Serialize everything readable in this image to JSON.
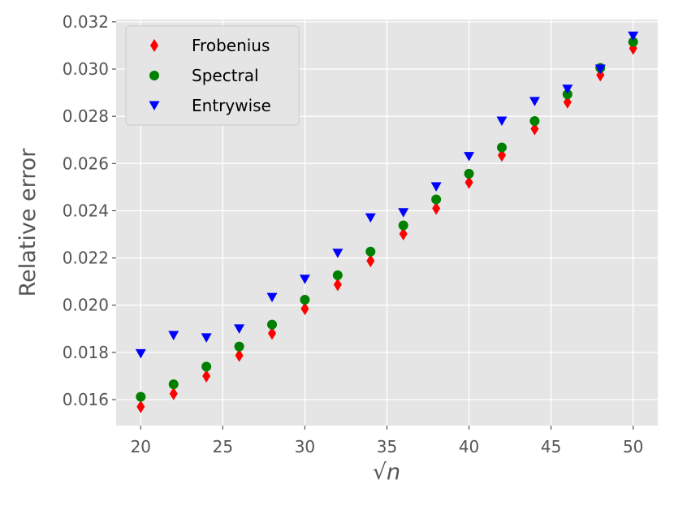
{
  "chart_data": {
    "type": "scatter",
    "title": "",
    "xlabel": "√n",
    "ylabel": "Relative error",
    "xlim": [
      18.5,
      51.5
    ],
    "ylim": [
      0.0149,
      0.0321
    ],
    "grid": true,
    "legend_position": "top-left",
    "x_ticks": [
      20,
      25,
      30,
      35,
      40,
      45,
      50
    ],
    "x_tick_labels": [
      "20",
      "25",
      "30",
      "35",
      "40",
      "45",
      "50"
    ],
    "y_ticks": [
      0.016,
      0.018,
      0.02,
      0.022,
      0.024,
      0.026,
      0.028,
      0.03,
      0.032
    ],
    "y_tick_labels": [
      "0.016",
      "0.018",
      "0.020",
      "0.022",
      "0.024",
      "0.026",
      "0.028",
      "0.030",
      "0.032"
    ],
    "x": [
      20,
      22,
      24,
      26,
      28,
      30,
      32,
      34,
      36,
      38,
      40,
      42,
      44,
      46,
      48,
      50
    ],
    "series": [
      {
        "name": "Frobenius",
        "marker": "diamond",
        "color": "#ff0000",
        "values": [
          0.0157,
          0.01625,
          0.017,
          0.01787,
          0.01881,
          0.01985,
          0.02087,
          0.02188,
          0.02302,
          0.0241,
          0.0252,
          0.02635,
          0.02747,
          0.0286,
          0.02975,
          0.03088
        ]
      },
      {
        "name": "Spectral",
        "marker": "circle",
        "color": "#008000",
        "values": [
          0.01612,
          0.01665,
          0.0174,
          0.01825,
          0.01918,
          0.02023,
          0.02127,
          0.02227,
          0.02338,
          0.02448,
          0.02557,
          0.02668,
          0.0278,
          0.02893,
          0.03005,
          0.03115
        ]
      },
      {
        "name": "Entrywise",
        "marker": "triangle-down",
        "color": "#0000ff",
        "values": [
          0.01795,
          0.01872,
          0.01862,
          0.019,
          0.02033,
          0.0211,
          0.0222,
          0.0237,
          0.02392,
          0.02502,
          0.0263,
          0.0278,
          0.02863,
          0.02915,
          0.03,
          0.0314
        ]
      }
    ]
  }
}
